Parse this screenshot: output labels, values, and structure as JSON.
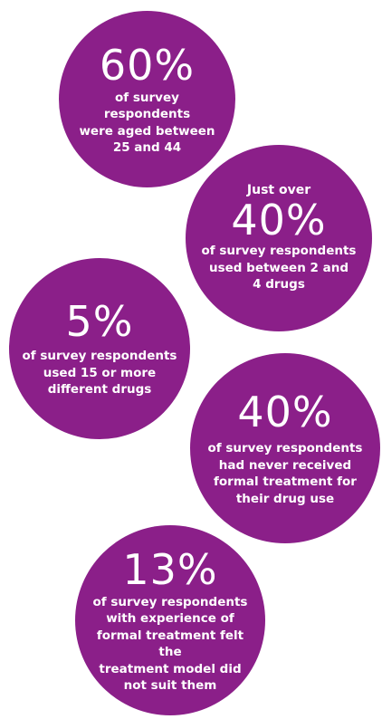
{
  "colors": {
    "bubble": "#8b1f89",
    "text": "#ffffff",
    "background": "#ffffff"
  },
  "stats": [
    {
      "value": "60%",
      "lines": [
        "of survey respondents",
        "were aged between",
        "25 and 44"
      ]
    },
    {
      "prefix": "Just over",
      "value": "40%",
      "lines": [
        "of survey respondents",
        "used between 2 and",
        "4 drugs"
      ]
    },
    {
      "value": "5%",
      "lines": [
        "of survey respondents",
        "used 15 or more",
        "different drugs"
      ]
    },
    {
      "value": "40%",
      "lines": [
        "of survey respondents",
        "had never received",
        "formal treatment for",
        "their drug use"
      ]
    },
    {
      "value": "13%",
      "lines": [
        "of survey respondents",
        "with experience of",
        "formal treatment felt the",
        "treatment model did",
        "not suit them"
      ]
    }
  ]
}
